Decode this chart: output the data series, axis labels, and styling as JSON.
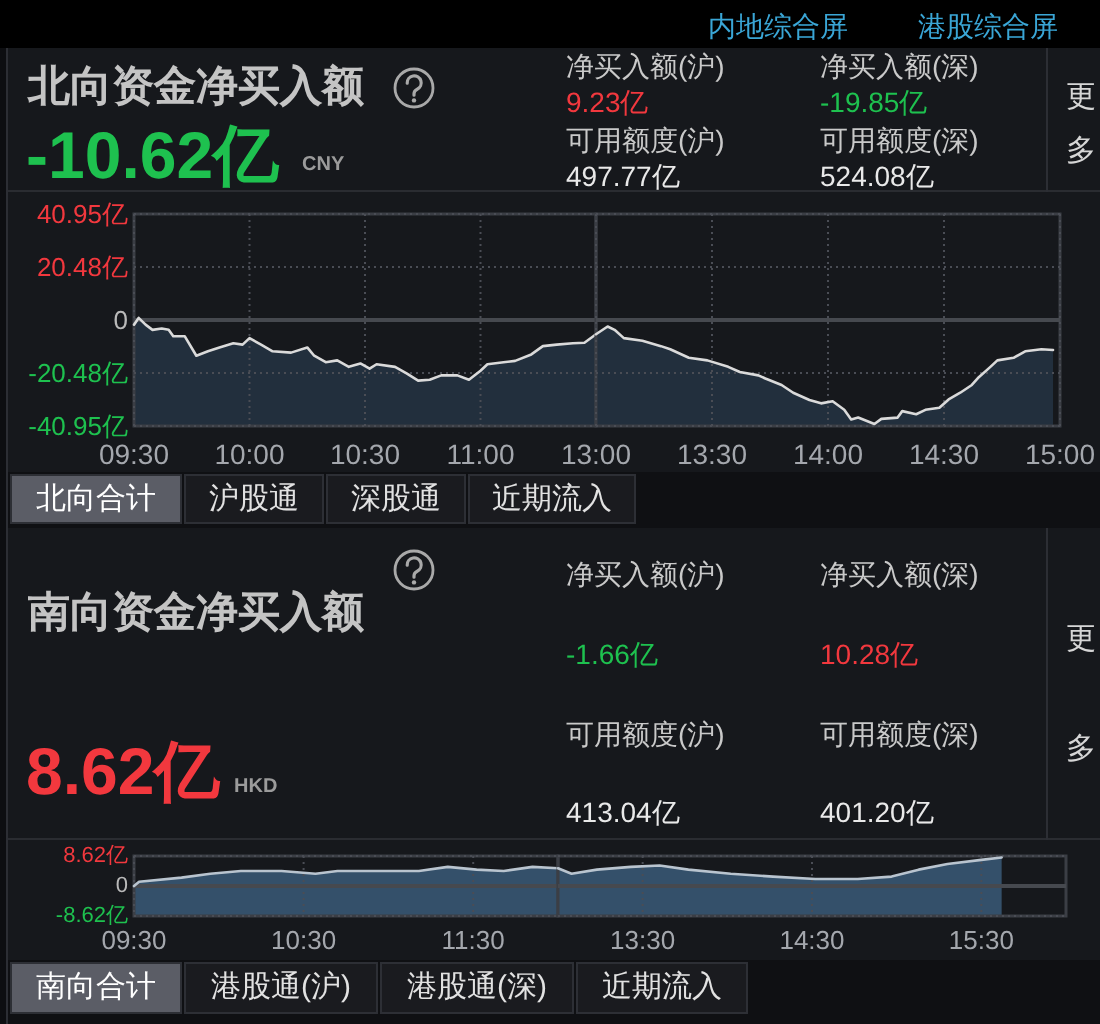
{
  "chart_data": [
    {
      "type": "other",
      "annotations": [
        "内地综合屏",
        "港股综合屏"
      ]
    },
    {
      "type": "other",
      "title": "北向资金净买入额",
      "annotations": [
        "-10.62亿",
        "CNY",
        "净买入额(沪)",
        "9.23亿",
        "净买入额(深)",
        "-19.85亿",
        "可用额度(沪)",
        "497.77亿",
        "可用额度(深)",
        "524.08亿",
        "更多"
      ]
    },
    {
      "type": "line",
      "x": [
        9.5,
        9.52,
        9.55,
        9.58,
        9.62,
        9.65,
        9.67,
        9.72,
        9.77,
        9.82,
        9.87,
        9.93,
        9.97,
        10.0,
        10.05,
        10.1,
        10.18,
        10.25,
        10.28,
        10.33,
        10.38,
        10.43,
        10.48,
        10.52,
        10.55,
        10.63,
        10.68,
        10.73,
        10.78,
        10.83,
        10.9,
        10.95,
        11.0,
        11.03,
        11.1,
        11.15,
        11.22,
        11.27,
        11.33,
        11.4,
        11.45,
        11.5
      ],
      "values": [
        -1.8,
        0.8,
        -1.8,
        -3.8,
        -3.3,
        -3.8,
        -6.3,
        -6.3,
        -13.8,
        -12.1,
        -10.6,
        -9.0,
        -9.5,
        -7.0,
        -9.5,
        -12.1,
        -12.6,
        -10.6,
        -13.8,
        -16.3,
        -15.6,
        -18.1,
        -16.8,
        -18.8,
        -17.1,
        -18.1,
        -20.6,
        -23.4,
        -23.1,
        -21.4,
        -21.4,
        -23.1,
        -19.6,
        -17.1,
        -16.3,
        -15.8,
        -13.3,
        -10.1,
        -9.5,
        -9.0,
        -8.8,
        -5.5
      ],
      "upper": [
        -1.8,
        0.8,
        -1.8,
        -3.8,
        -3.3,
        -3.8,
        -6.3,
        -6.3,
        -13.8,
        -12.1,
        -10.6,
        -9.0,
        -9.5,
        -7.0,
        -9.5,
        -12.1,
        -12.6,
        -10.6,
        -13.8,
        -16.3,
        -15.6,
        -18.1,
        -16.8,
        -18.8,
        -17.1,
        -18.1,
        -20.6,
        -23.4,
        -23.1,
        -21.4,
        -21.4,
        -23.1,
        -19.6,
        -17.1,
        -16.3,
        -15.8,
        -13.3,
        -10.1,
        -9.5,
        -9.0,
        -8.8,
        -5.5
      ],
      "lower": [
        -40.95,
        -40.95,
        -40.95,
        -40.95,
        -40.95,
        -40.95,
        -40.95,
        -40.95,
        -40.95,
        -40.95,
        -40.95,
        -40.95,
        -40.95,
        -40.95,
        -40.95,
        -40.95,
        -40.95,
        -40.95,
        -40.95,
        -40.95,
        -40.95,
        -40.95,
        -40.95,
        -40.95,
        -40.95,
        -40.95,
        -40.95,
        -40.95,
        -40.95,
        -40.95,
        -40.95,
        -40.95,
        -40.95,
        -40.95,
        -40.95,
        -40.95,
        -40.95,
        -40.95,
        -40.95,
        -40.95,
        -40.95,
        -40.95
      ],
      "color": "#dadada",
      "xlim": [
        9.5,
        11.5
      ],
      "xticks": [
        {
          "value": 9.5,
          "label": "09:30"
        },
        {
          "value": 10,
          "label": "10:00"
        },
        {
          "value": 10.5,
          "label": "10:30"
        },
        {
          "value": 11,
          "label": "11:00"
        }
      ],
      "ylim": [
        -40.95,
        40.95
      ],
      "yticks": [
        {
          "value": 40.95,
          "label": "40.95亿"
        },
        {
          "value": 20.48,
          "label": "20.48亿"
        },
        0,
        {
          "value": -20.48,
          "label": "-20.48亿"
        },
        {
          "value": -40.95,
          "label": "-40.95亿"
        }
      ],
      "grid": true
    },
    {
      "type": "line",
      "x": [
        13.0,
        13.05,
        13.08,
        13.12,
        13.2,
        13.28,
        13.32,
        13.4,
        13.48,
        13.57,
        13.62,
        13.7,
        13.73,
        13.8,
        13.85,
        13.92,
        13.97,
        14.02,
        14.07,
        14.1,
        14.13,
        14.2,
        14.23,
        14.3,
        14.32,
        14.38,
        14.42,
        14.48,
        14.52,
        14.57,
        14.62,
        14.65,
        14.7,
        14.73,
        14.8,
        14.85,
        14.92,
        14.97
      ],
      "values": [
        -5.5,
        -2.5,
        -3.8,
        -7.0,
        -8.0,
        -10.1,
        -11.3,
        -14.6,
        -15.6,
        -18.1,
        -20.1,
        -21.4,
        -22.6,
        -25.1,
        -28.1,
        -30.9,
        -32.2,
        -31.4,
        -34.7,
        -38.4,
        -37.7,
        -40.2,
        -38.2,
        -37.7,
        -35.2,
        -36.4,
        -34.7,
        -33.9,
        -30.7,
        -28.1,
        -25.1,
        -22.1,
        -18.1,
        -15.6,
        -14.6,
        -12.1,
        -11.3,
        -11.6
      ],
      "upper": [
        -5.5,
        -2.5,
        -3.8,
        -7.0,
        -8.0,
        -10.1,
        -11.3,
        -14.6,
        -15.6,
        -18.1,
        -20.1,
        -21.4,
        -22.6,
        -25.1,
        -28.1,
        -30.9,
        -32.2,
        -31.4,
        -34.7,
        -38.4,
        -37.7,
        -40.2,
        -38.2,
        -37.7,
        -35.2,
        -36.4,
        -34.7,
        -33.9,
        -30.7,
        -28.1,
        -25.1,
        -22.1,
        -18.1,
        -15.6,
        -14.6,
        -12.1,
        -11.3,
        -11.6
      ],
      "lower": [
        -40.95,
        -40.95,
        -40.95,
        -40.95,
        -40.95,
        -40.95,
        -40.95,
        -40.95,
        -40.95,
        -40.95,
        -40.95,
        -40.95,
        -40.95,
        -40.95,
        -40.95,
        -40.95,
        -40.95,
        -40.95,
        -40.95,
        -40.95,
        -40.95,
        -40.95,
        -40.95,
        -40.95,
        -40.95,
        -40.95,
        -40.95,
        -40.95,
        -40.95,
        -40.95,
        -40.95,
        -40.95,
        -40.95,
        -40.95,
        -40.95,
        -40.95,
        -40.95,
        -40.95
      ],
      "color": "#dadada",
      "xlim": [
        13,
        15
      ],
      "xticks": [
        {
          "value": 13,
          "label": "13:00"
        },
        {
          "value": 13.5,
          "label": "13:30"
        },
        {
          "value": 14,
          "label": "14:00"
        },
        {
          "value": 14.5,
          "label": "14:30"
        },
        {
          "value": 15,
          "label": "15:00"
        }
      ],
      "ylim": [
        -40.95,
        40.95
      ],
      "yticks": [
        40.95,
        20.48,
        0,
        -20.48,
        -40.95
      ],
      "grid": true,
      "tick_labels": "x"
    },
    {
      "type": "other",
      "annotations": [
        "北向合计",
        "沪股通",
        "深股通",
        "近期流入"
      ]
    },
    {
      "type": "other",
      "title": "南向资金净买入额",
      "annotations": [
        "8.62亿",
        "HKD",
        "净买入额(沪)",
        "-1.66亿",
        "净买入额(深)",
        "10.28亿",
        "可用额度(沪)",
        "413.04亿",
        "可用额度(深)",
        "401.20亿",
        "更多"
      ]
    },
    {
      "type": "line",
      "x": [
        9.5,
        9.53,
        9.78,
        9.95,
        10.13,
        10.37,
        10.57,
        10.7,
        10.98,
        11.18,
        11.35,
        11.52,
        11.68,
        11.85,
        12.0
      ],
      "values": [
        0,
        1.2,
        2.4,
        3.5,
        4.3,
        4.3,
        3.5,
        4.3,
        4.3,
        4.3,
        5.5,
        4.7,
        4.3,
        5.5,
        5.1
      ],
      "upper": [
        0,
        1.2,
        2.4,
        3.5,
        4.3,
        4.3,
        3.5,
        4.3,
        4.3,
        4.3,
        5.5,
        4.7,
        4.3,
        5.5,
        5.1
      ],
      "lower": [
        -8.62,
        -8.62,
        -8.62,
        -8.62,
        -8.62,
        -8.62,
        -8.62,
        -8.62,
        -8.62,
        -8.62,
        -8.62,
        -8.62,
        -8.62,
        -8.62,
        -8.62
      ],
      "color": "#b9c4cf",
      "xlim": [
        9.5,
        12
      ],
      "xticks": [
        {
          "value": 9.5,
          "label": "09:30"
        },
        {
          "value": 10.5,
          "label": "10:30"
        },
        {
          "value": 11.5,
          "label": "11:30"
        }
      ],
      "ylim": [
        -8.62,
        8.62
      ],
      "yticks": [
        {
          "value": 8.62,
          "label": "8.62亿"
        },
        0,
        {
          "value": -8.62,
          "label": "-8.62亿"
        }
      ],
      "grid": true
    },
    {
      "type": "line",
      "x": [
        13.0,
        13.08,
        13.23,
        13.43,
        13.6,
        13.77,
        14.02,
        14.27,
        14.52,
        14.77,
        14.97,
        15.13,
        15.3,
        15.5,
        15.62
      ],
      "values": [
        5.1,
        3.5,
        4.7,
        5.5,
        5.9,
        4.7,
        3.5,
        2.7,
        2.0,
        2.0,
        2.7,
        4.7,
        6.3,
        7.5,
        8.2
      ],
      "upper": [
        5.1,
        3.5,
        4.7,
        5.5,
        5.9,
        4.7,
        3.5,
        2.7,
        2.0,
        2.0,
        2.7,
        4.7,
        6.3,
        7.5,
        8.2
      ],
      "lower": [
        -8.62,
        -8.62,
        -8.62,
        -8.62,
        -8.62,
        -8.62,
        -8.62,
        -8.62,
        -8.62,
        -8.62,
        -8.62,
        -8.62,
        -8.62,
        -8.62,
        -8.62
      ],
      "color": "#b9c4cf",
      "xlim": [
        13,
        16
      ],
      "xticks": [
        {
          "value": 13.5,
          "label": "13:30"
        },
        {
          "value": 14.5,
          "label": "14:30"
        },
        {
          "value": 15.5,
          "label": "15:30"
        }
      ],
      "ylim": [
        -8.62,
        8.62
      ],
      "yticks": [
        8.62,
        0,
        -8.62
      ],
      "grid": true,
      "tick_labels": "x"
    },
    {
      "type": "other",
      "annotations": [
        "南向合计",
        "港股通(沪)",
        "港股通(深)",
        "近期流入"
      ]
    }
  ]
}
